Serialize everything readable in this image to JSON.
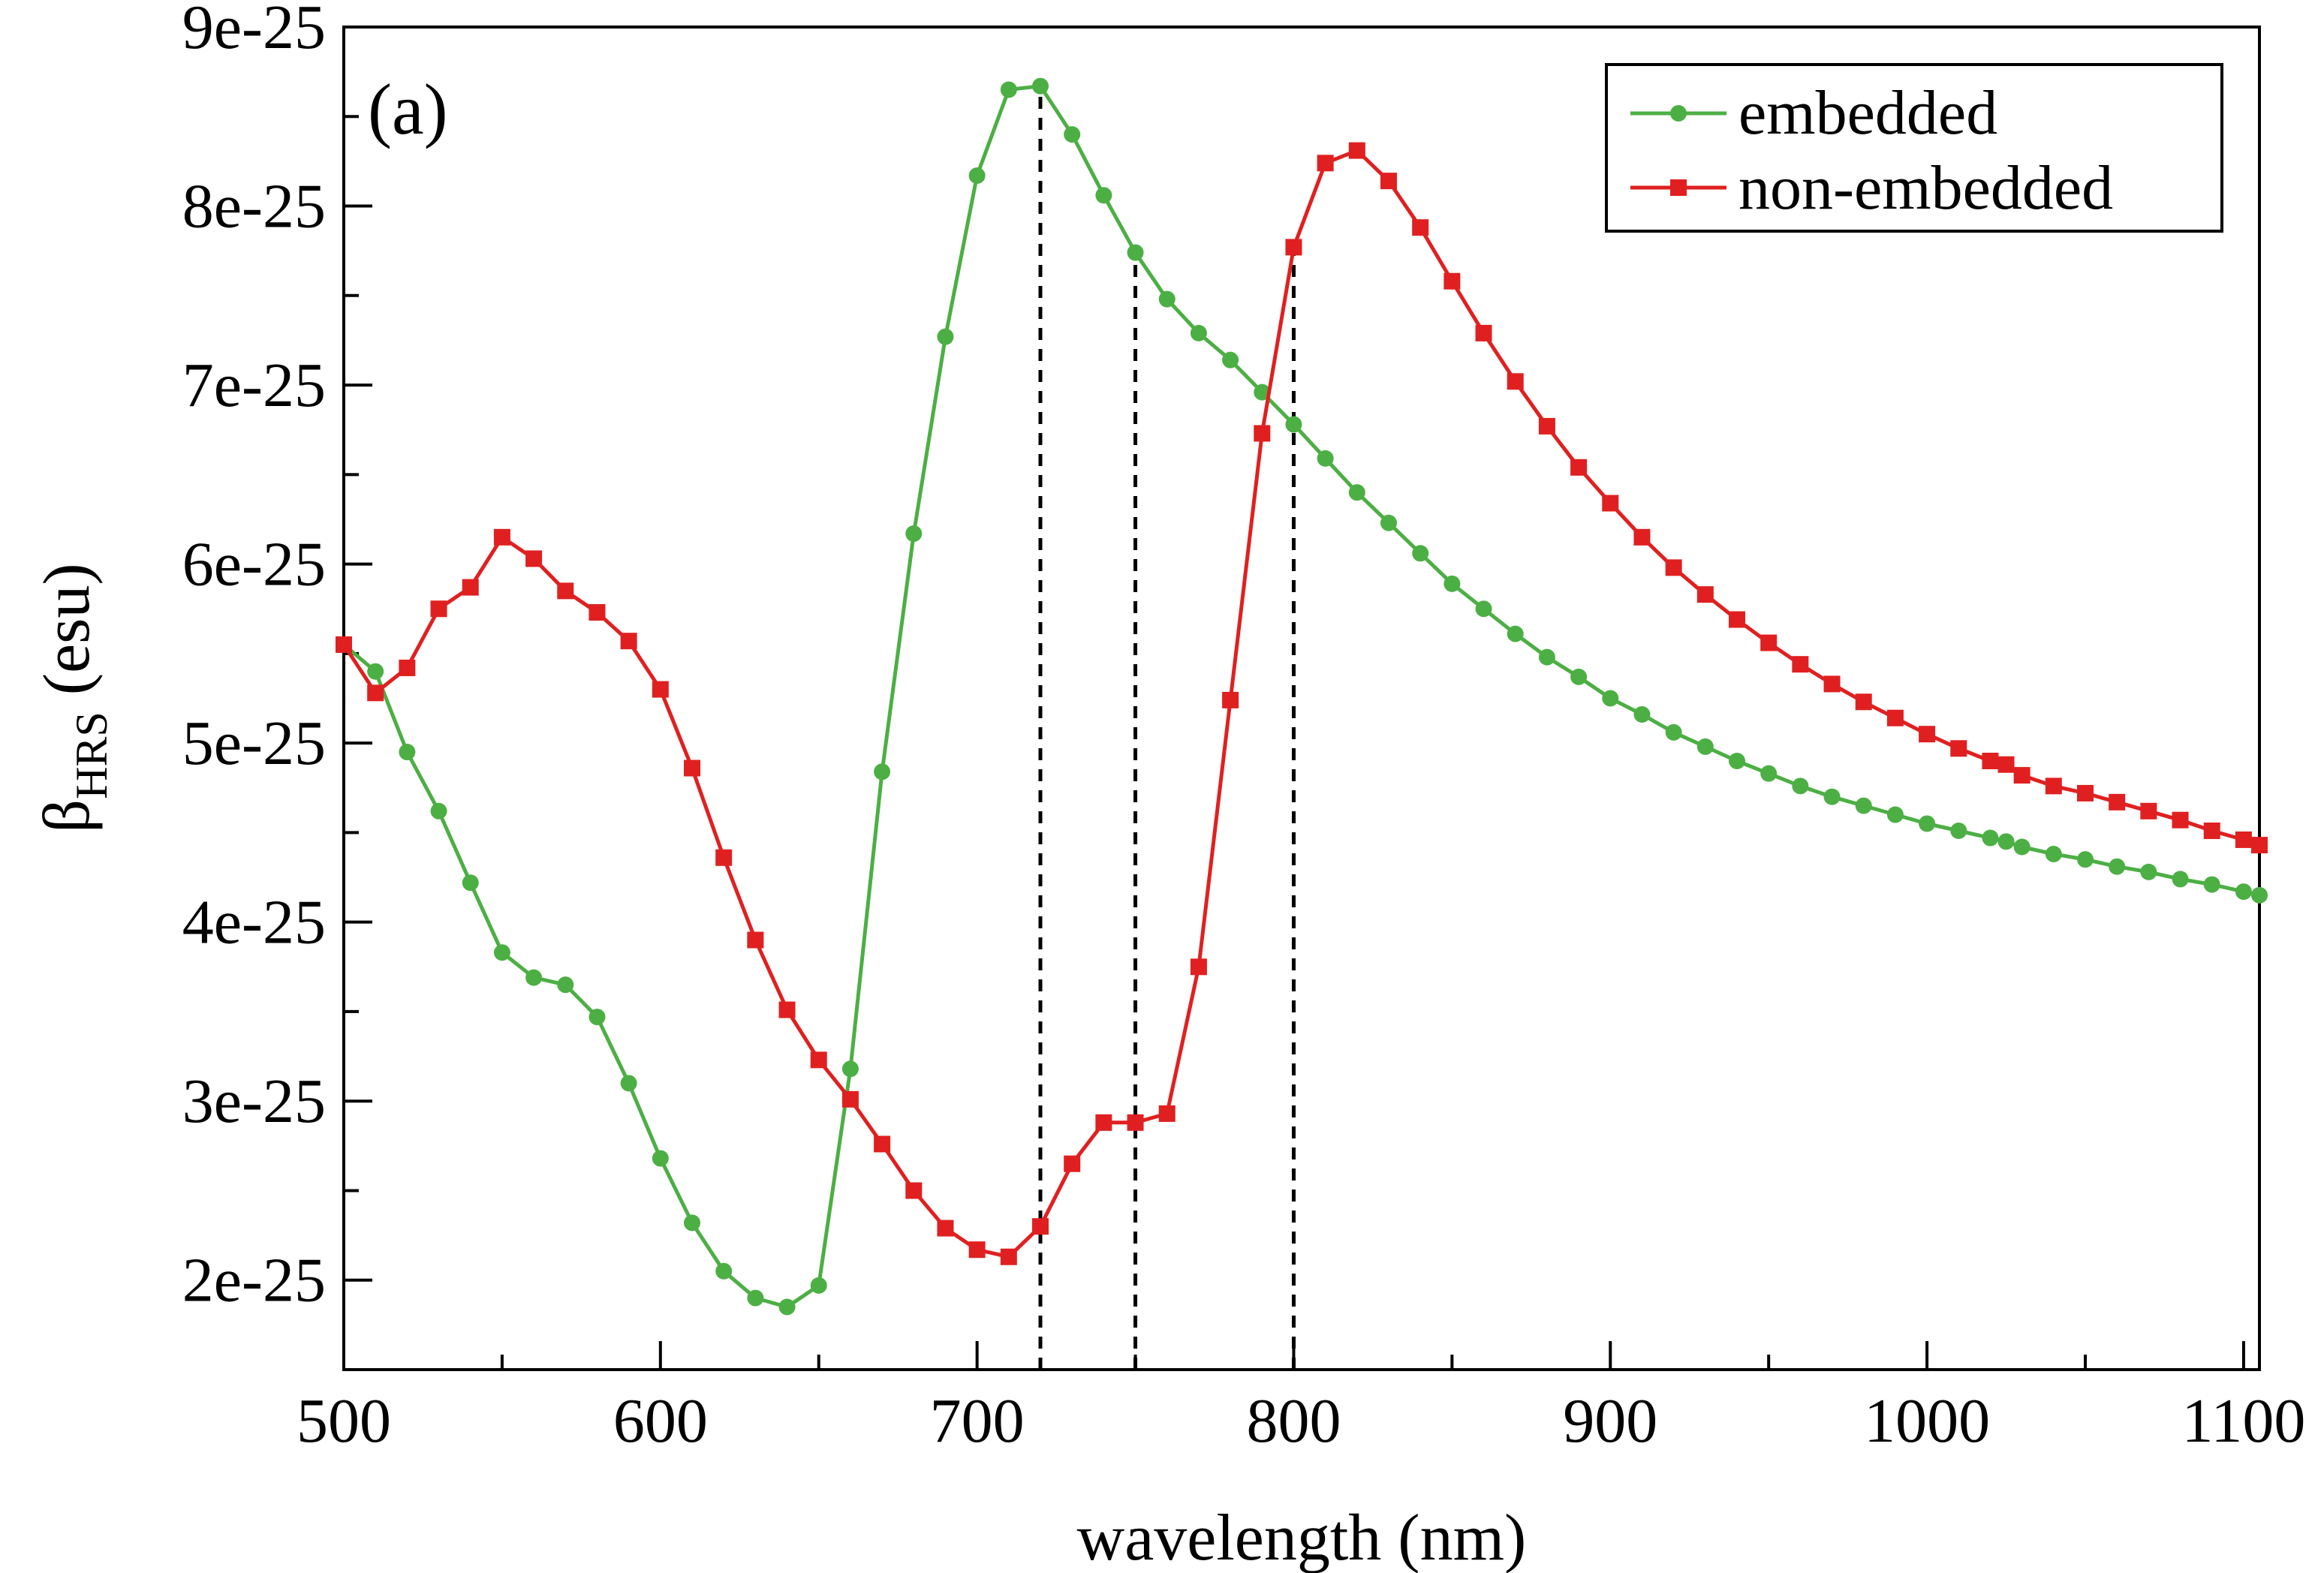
{
  "chart_data": {
    "type": "line",
    "title": "",
    "panel_label": "(a)",
    "xlabel": "wavelength (nm)",
    "ylabel": {
      "symbol": "β",
      "subscript": "HRS",
      "unit": "(esu)"
    },
    "xlim": [
      500,
      1105
    ],
    "ylim": [
      1.5e-25,
      9e-25
    ],
    "xticks": [
      500,
      600,
      700,
      800,
      900,
      1000,
      1100
    ],
    "xtick_labels": [
      "500",
      "600",
      "700",
      "800",
      "900",
      "1000",
      "1100"
    ],
    "yticks": [
      2e-25,
      3e-25,
      4e-25,
      5e-25,
      6e-25,
      7e-25,
      8e-25,
      9e-25
    ],
    "ytick_labels": [
      "2e-25",
      "3e-25",
      "4e-25",
      "5e-25",
      "6e-25",
      "7e-25",
      "8e-25",
      "9e-25"
    ],
    "legend_position": "top-right",
    "vertical_lines": [
      720,
      750,
      800
    ],
    "series": [
      {
        "name": "embedded",
        "color": "#4caf44",
        "marker": "circle",
        "x": [
          500,
          510,
          520,
          530,
          540,
          550,
          560,
          570,
          580,
          590,
          600,
          610,
          620,
          630,
          640,
          650,
          660,
          670,
          680,
          690,
          700,
          710,
          720,
          730,
          740,
          750,
          760,
          770,
          780,
          790,
          800,
          810,
          820,
          830,
          840,
          850,
          860,
          870,
          880,
          890,
          900,
          910,
          920,
          930,
          940,
          950,
          960,
          970,
          980,
          990,
          1000,
          1010,
          1020,
          1025,
          1030,
          1040,
          1050,
          1060,
          1070,
          1080,
          1090,
          1100,
          1105
        ],
        "y": [
          5.55e-25,
          5.4e-25,
          4.95e-25,
          4.62e-25,
          4.22e-25,
          3.83e-25,
          3.69e-25,
          3.65e-25,
          3.47e-25,
          3.1e-25,
          2.68e-25,
          2.32e-25,
          2.05e-25,
          1.9e-25,
          1.85e-25,
          1.97e-25,
          3.18e-25,
          4.84e-25,
          6.17e-25,
          7.27e-25,
          8.17e-25,
          8.65e-25,
          8.67e-25,
          8.4e-25,
          8.06e-25,
          7.74e-25,
          7.48e-25,
          7.29e-25,
          7.14e-25,
          6.96e-25,
          6.78e-25,
          6.59e-25,
          6.4e-25,
          6.23e-25,
          6.06e-25,
          5.89e-25,
          5.75e-25,
          5.61e-25,
          5.48e-25,
          5.37e-25,
          5.25e-25,
          5.16e-25,
          5.06e-25,
          4.98e-25,
          4.9e-25,
          4.83e-25,
          4.76e-25,
          4.7e-25,
          4.65e-25,
          4.6e-25,
          4.55e-25,
          4.51e-25,
          4.47e-25,
          4.45e-25,
          4.42e-25,
          4.38e-25,
          4.35e-25,
          4.31e-25,
          4.28e-25,
          4.24e-25,
          4.21e-25,
          4.17e-25,
          4.15e-25
        ]
      },
      {
        "name": "non-embedded",
        "color": "#e02020",
        "marker": "square",
        "x": [
          500,
          510,
          520,
          530,
          540,
          550,
          560,
          570,
          580,
          590,
          600,
          610,
          620,
          630,
          640,
          650,
          660,
          670,
          680,
          690,
          700,
          710,
          720,
          730,
          740,
          750,
          760,
          770,
          780,
          790,
          800,
          810,
          820,
          830,
          840,
          850,
          860,
          870,
          880,
          890,
          900,
          910,
          920,
          930,
          940,
          950,
          960,
          970,
          980,
          990,
          1000,
          1010,
          1020,
          1025,
          1030,
          1040,
          1050,
          1060,
          1070,
          1080,
          1090,
          1100,
          1105
        ],
        "y": [
          5.55e-25,
          5.28e-25,
          5.42e-25,
          5.75e-25,
          5.87e-25,
          6.15e-25,
          6.03e-25,
          5.85e-25,
          5.73e-25,
          5.57e-25,
          5.3e-25,
          4.86e-25,
          4.36e-25,
          3.9e-25,
          3.51e-25,
          3.23e-25,
          3.01e-25,
          2.76e-25,
          2.5e-25,
          2.29e-25,
          2.17e-25,
          2.13e-25,
          2.3e-25,
          2.65e-25,
          2.88e-25,
          2.88e-25,
          2.93e-25,
          3.75e-25,
          5.24e-25,
          6.73e-25,
          7.77e-25,
          8.24e-25,
          8.31e-25,
          8.14e-25,
          7.88e-25,
          7.58e-25,
          7.29e-25,
          7.02e-25,
          6.77e-25,
          6.54e-25,
          6.34e-25,
          6.15e-25,
          5.98e-25,
          5.83e-25,
          5.69e-25,
          5.56e-25,
          5.44e-25,
          5.33e-25,
          5.23e-25,
          5.14e-25,
          5.05e-25,
          4.97e-25,
          4.9e-25,
          4.88e-25,
          4.82e-25,
          4.76e-25,
          4.72e-25,
          4.67e-25,
          4.62e-25,
          4.57e-25,
          4.51e-25,
          4.46e-25,
          4.43e-25
        ]
      }
    ]
  }
}
